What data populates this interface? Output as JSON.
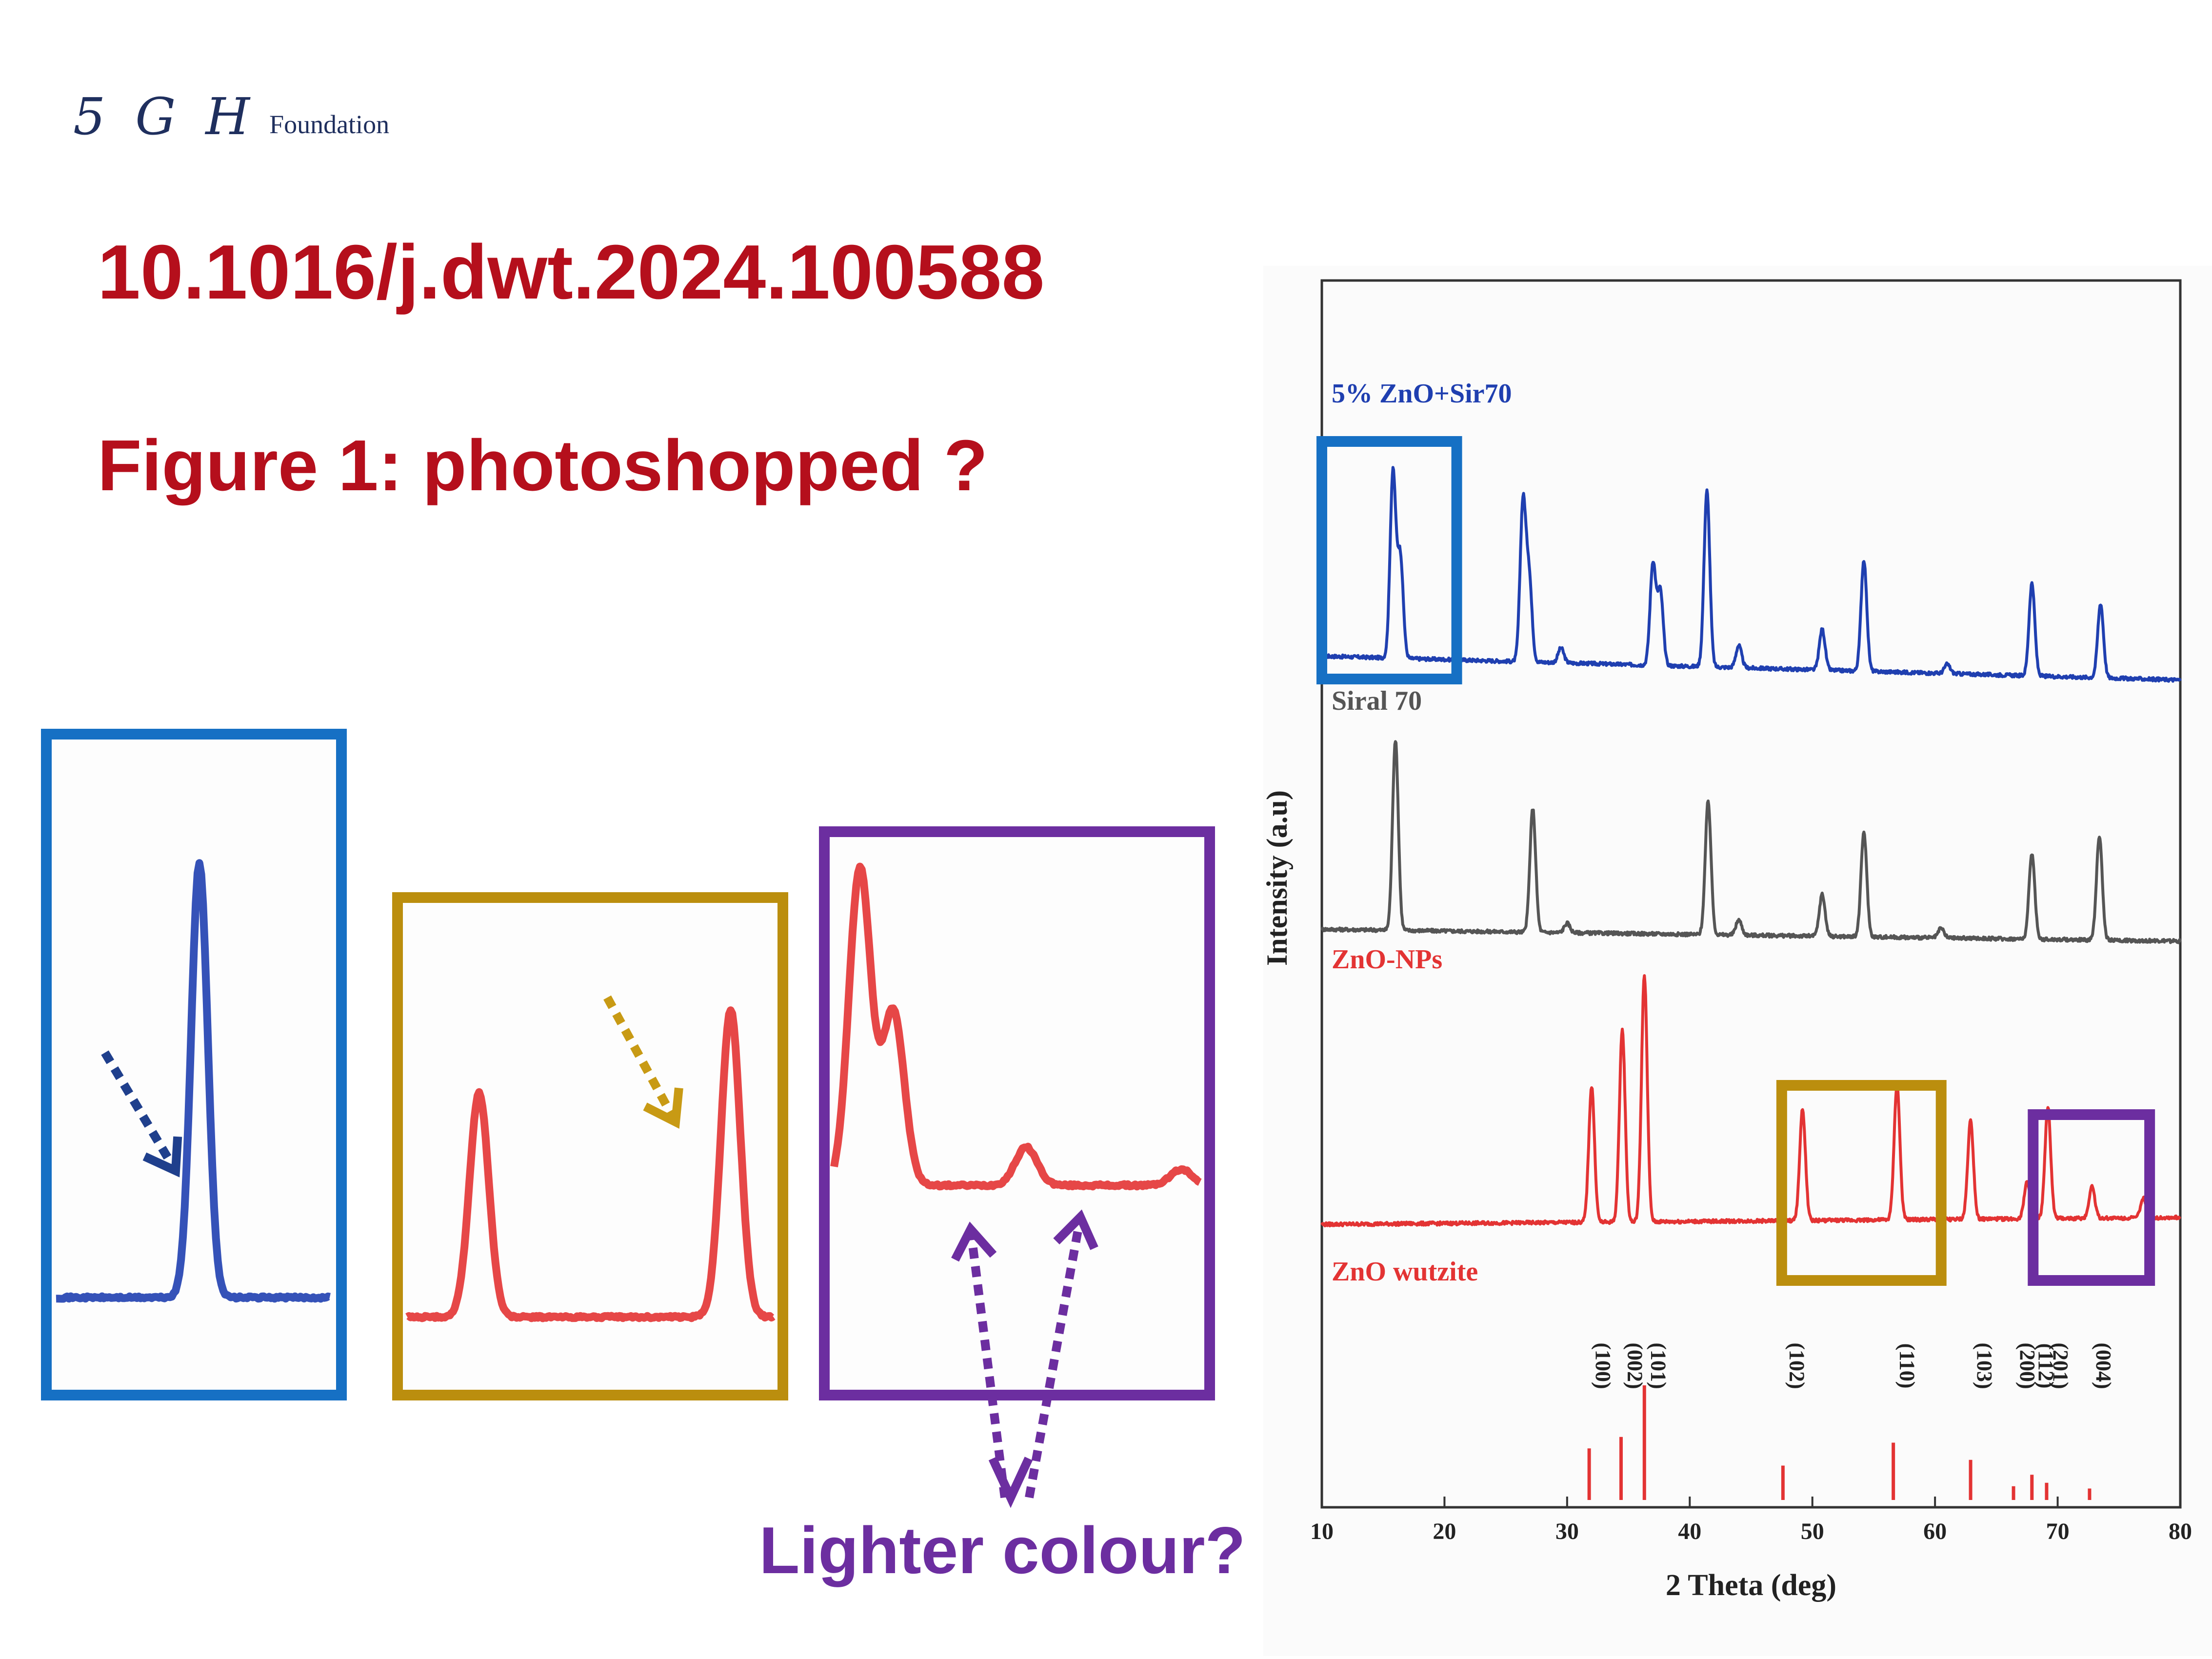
{
  "slide": {
    "logo_mark": "5 G H",
    "logo_text": "Foundation",
    "doi": "10.1016/j.dwt.2024.100588",
    "figure_title": "Figure 1: photoshopped ?",
    "callout_text": "Lighter colour?",
    "colors": {
      "title": "#b50f1c",
      "blue_box": "#1670c4",
      "gold_box": "#bb8e0e",
      "purple_box": "#6c2ea0"
    }
  },
  "chart_data": {
    "type": "line",
    "xlabel": "2 Theta (deg)",
    "ylabel": "Intensity (a.u)",
    "xlim": [
      10,
      80
    ],
    "x_ticks": [
      10,
      20,
      30,
      40,
      50,
      60,
      70,
      80
    ],
    "grid": false,
    "series": [
      {
        "name": "5% ZnO+Sir70",
        "color": "#1f3fb0",
        "peaks": [
          [
            15.8,
            1.0
          ],
          [
            16.4,
            0.55
          ],
          [
            26.4,
            0.85
          ],
          [
            26.9,
            0.45
          ],
          [
            29.5,
            0.08
          ],
          [
            37.0,
            0.55
          ],
          [
            37.6,
            0.4
          ],
          [
            41.4,
            0.95
          ],
          [
            44.0,
            0.12
          ],
          [
            50.8,
            0.22
          ],
          [
            54.2,
            0.6
          ],
          [
            61.0,
            0.05
          ],
          [
            67.9,
            0.5
          ],
          [
            73.5,
            0.4
          ]
        ]
      },
      {
        "name": "Siral 70",
        "color": "#555555",
        "peaks": [
          [
            16.0,
            1.0
          ],
          [
            27.2,
            0.65
          ],
          [
            30.0,
            0.05
          ],
          [
            41.5,
            0.7
          ],
          [
            44.0,
            0.08
          ],
          [
            50.8,
            0.22
          ],
          [
            54.2,
            0.55
          ],
          [
            60.5,
            0.05
          ],
          [
            67.9,
            0.45
          ],
          [
            73.4,
            0.55
          ]
        ]
      },
      {
        "name": "ZnO-NPs",
        "color": "#e33333",
        "peaks": [
          [
            32.0,
            0.55
          ],
          [
            34.5,
            0.78
          ],
          [
            36.3,
            1.0
          ],
          [
            49.2,
            0.45
          ],
          [
            56.9,
            0.55
          ],
          [
            62.9,
            0.4
          ],
          [
            67.5,
            0.15
          ],
          [
            69.2,
            0.45
          ],
          [
            72.8,
            0.13
          ],
          [
            77.0,
            0.08
          ]
        ]
      }
    ],
    "reference": {
      "name": "ZnO wutzite",
      "color": "#e33333",
      "lines": [
        {
          "hkl": "(100)",
          "x": 31.8,
          "h": 0.45
        },
        {
          "hkl": "(002)",
          "x": 34.4,
          "h": 0.55
        },
        {
          "hkl": "(101)",
          "x": 36.3,
          "h": 1.0
        },
        {
          "hkl": "(102)",
          "x": 47.6,
          "h": 0.3
        },
        {
          "hkl": "(110)",
          "x": 56.6,
          "h": 0.5
        },
        {
          "hkl": "(103)",
          "x": 62.9,
          "h": 0.35
        },
        {
          "hkl": "(200)",
          "x": 66.4,
          "h": 0.12
        },
        {
          "hkl": "(112)",
          "x": 67.9,
          "h": 0.22
        },
        {
          "hkl": "(201)",
          "x": 69.1,
          "h": 0.15
        },
        {
          "hkl": "(004)",
          "x": 72.6,
          "h": 0.1
        }
      ]
    },
    "highlights": [
      {
        "name": "blue",
        "x_range": [
          10,
          21
        ]
      },
      {
        "name": "gold",
        "x_range": [
          47.5,
          60.5
        ]
      },
      {
        "name": "purple",
        "x_range": [
          68,
          77.5
        ]
      }
    ],
    "zooms": [
      {
        "name": "blue",
        "peaks": [
          [
            15.9,
            1.0
          ]
        ]
      },
      {
        "name": "gold",
        "peaks": [
          [
            49.2,
            0.62
          ],
          [
            56.9,
            0.85
          ]
        ]
      },
      {
        "name": "purple",
        "peaks": [
          [
            68.3,
            1.0
          ],
          [
            69.2,
            0.55
          ],
          [
            72.8,
            0.12
          ],
          [
            77.0,
            0.05
          ]
        ]
      }
    ]
  }
}
